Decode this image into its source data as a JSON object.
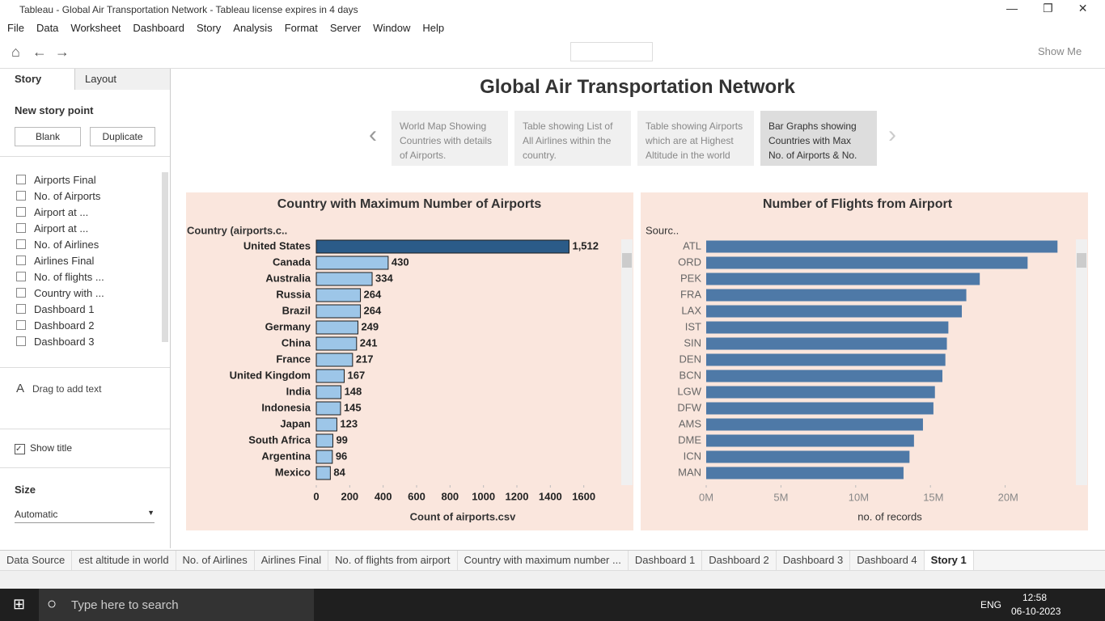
{
  "window": {
    "title": "Tableau - Global Air Transportation Network - Tableau license expires in 4 days"
  },
  "menu": [
    "File",
    "Data",
    "Worksheet",
    "Dashboard",
    "Story",
    "Analysis",
    "Format",
    "Server",
    "Window",
    "Help"
  ],
  "toolbar": {
    "show_me": "Show Me"
  },
  "sidebar": {
    "tabs": [
      "Story",
      "Layout"
    ],
    "new_story_point": "New story point",
    "buttons": [
      "Blank",
      "Duplicate"
    ],
    "sheets": [
      "Airports Final",
      "No. of Airports",
      "Airport at ...",
      "Airport at ...",
      "No. of Airlines",
      "Airlines Final",
      "No. of flights ...",
      "Country with ...",
      "Dashboard 1",
      "Dashboard 2",
      "Dashboard 3"
    ],
    "drag_text": "Drag to add text",
    "show_title": "Show title",
    "size_label": "Size",
    "size_value": "Automatic"
  },
  "story": {
    "title": "Global Air Transportation Network",
    "points": [
      "World Map Showing Countries with details of Airports.",
      "Table showing List of All Airlines within the country.",
      "Table showing Airports which are at Highest Altitude in the world",
      "Bar Graphs showing Countries with Max No. of Airports & No."
    ]
  },
  "chart_data": [
    {
      "type": "bar",
      "orientation": "horizontal",
      "title": "Country with Maximum Number of Airports",
      "y_label": "Country (airports.c..",
      "x_label": "Count of airports.csv",
      "categories": [
        "United States",
        "Canada",
        "Australia",
        "Russia",
        "Brazil",
        "Germany",
        "China",
        "France",
        "United Kingdom",
        "India",
        "Indonesia",
        "Japan",
        "South Africa",
        "Argentina",
        "Mexico"
      ],
      "values": [
        1512,
        430,
        334,
        264,
        264,
        249,
        241,
        217,
        167,
        148,
        145,
        123,
        99,
        96,
        84
      ],
      "value_labels": [
        "1,512",
        "430",
        "334",
        "264",
        "264",
        "249",
        "241",
        "217",
        "167",
        "148",
        "145",
        "123",
        "99",
        "96",
        "84"
      ],
      "colors": [
        "#2b5b88",
        "#9dc6e8",
        "#9dc6e8",
        "#9dc6e8",
        "#9dc6e8",
        "#9dc6e8",
        "#9dc6e8",
        "#9dc6e8",
        "#9dc6e8",
        "#9dc6e8",
        "#9dc6e8",
        "#9dc6e8",
        "#9dc6e8",
        "#9dc6e8",
        "#9dc6e8"
      ],
      "bar_outline": "#1c1c1c",
      "xlim": [
        0,
        1800
      ],
      "xticks": [
        0,
        200,
        400,
        600,
        800,
        1000,
        1200,
        1400,
        1600
      ],
      "grid": false
    },
    {
      "type": "bar",
      "orientation": "horizontal",
      "title": "Number of Flights from Airport",
      "y_label": "Sourc..",
      "x_label": "no. of records",
      "categories": [
        "ATL",
        "ORD",
        "PEK",
        "FRA",
        "LAX",
        "IST",
        "SIN",
        "DEN",
        "BCN",
        "LGW",
        "DFW",
        "AMS",
        "DME",
        "ICN",
        "MAN"
      ],
      "values": [
        23500000,
        21500000,
        18300000,
        17400000,
        17100000,
        16200000,
        16100000,
        16000000,
        15800000,
        15300000,
        15200000,
        14500000,
        13900000,
        13600000,
        13200000
      ],
      "color": "#4e79a7",
      "xlim": [
        0,
        25000000
      ],
      "xticks": [
        {
          "value": 0,
          "label": "0M"
        },
        {
          "value": 5000000,
          "label": "5M"
        },
        {
          "value": 10000000,
          "label": "10M"
        },
        {
          "value": 15000000,
          "label": "15M"
        },
        {
          "value": 20000000,
          "label": "20M"
        }
      ],
      "grid": false
    }
  ],
  "tabs": [
    "Data Source",
    "est altitude in world",
    "No. of Airlines",
    "Airlines Final",
    "No. of flights from airport",
    "Country with maximum number ...",
    "Dashboard 1",
    "Dashboard 2",
    "Dashboard 3",
    "Dashboard 4",
    "Story 1"
  ],
  "taskbar": {
    "search": "Type here to search",
    "lang": "ENG",
    "time": "12:58",
    "date": "06-10-2023"
  }
}
